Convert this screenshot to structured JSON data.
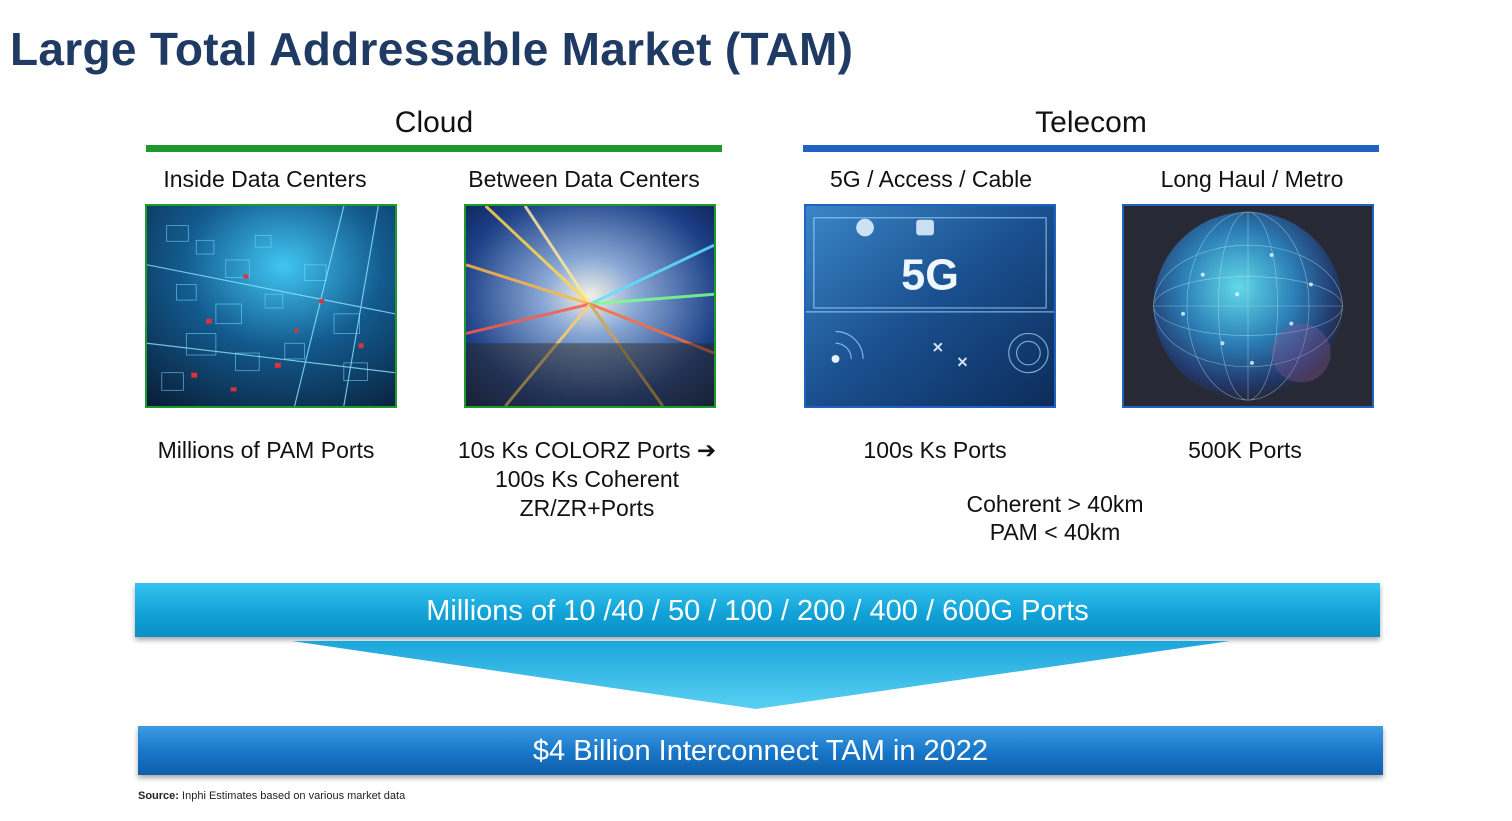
{
  "title": "Large Total Addressable Market (TAM)",
  "sections": {
    "cloud": {
      "title": "Cloud",
      "color": "#1e9a2c"
    },
    "telecom": {
      "title": "Telecom",
      "color": "#1f62c0"
    }
  },
  "columns": [
    {
      "label": "Inside Data Centers",
      "image": "data-center-network-image",
      "ports": [
        "Millions of PAM Ports"
      ]
    },
    {
      "label": "Between Data Centers",
      "image": "light-streaks-image",
      "ports": [
        "10s Ks COLORZ Ports ➔",
        "100s Ks Coherent",
        "ZR/ZR+Ports"
      ]
    },
    {
      "label": "5G / Access / Cable",
      "image": "5g-network-image",
      "image_text": "5G",
      "ports": [
        "100s Ks Ports"
      ]
    },
    {
      "label": "Long Haul / Metro",
      "image": "globe-network-image",
      "ports": [
        "500K Ports"
      ]
    }
  ],
  "notes": [
    "Coherent > 40km",
    "PAM < 40km"
  ],
  "banner_ports": "Millions of 10 /40 / 50 / 100 / 200 / 400 / 600G Ports",
  "banner_tam": "$4 Billion Interconnect TAM in 2022",
  "source": {
    "label": "Source:",
    "text": "Inphi Estimates based on various market data"
  }
}
